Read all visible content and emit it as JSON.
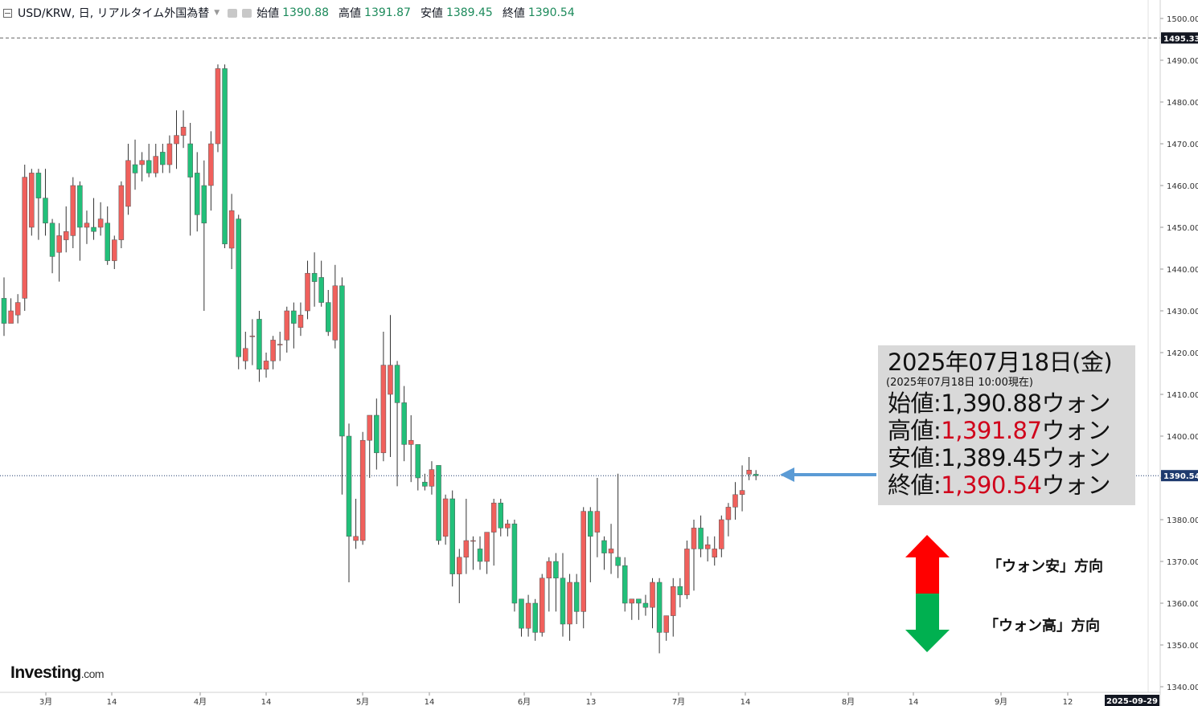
{
  "header": {
    "symbol": "USD/KRW, 日, リアルタイム外国為替",
    "open_label": "始値",
    "open_value": "1390.88",
    "high_label": "高値",
    "high_value": "1391.87",
    "low_label": "安値",
    "low_value": "1389.45",
    "close_label": "終値",
    "close_value": "1390.54"
  },
  "info_box": {
    "date": "2025年07月18日(金)",
    "as_of": "(2025年07月18日 10:00現在)",
    "rows": [
      {
        "label": "始値",
        "value": "1,390.88",
        "unit": "ウォン",
        "highlight": false
      },
      {
        "label": "高値",
        "value": "1,391.87",
        "unit": "ウォン",
        "highlight": true
      },
      {
        "label": "安値",
        "value": "1,389.45",
        "unit": "ウォン",
        "highlight": false
      },
      {
        "label": "終値",
        "value": "1,390.54",
        "unit": "ウォン",
        "highlight": true
      }
    ]
  },
  "legend": {
    "up_text": "「ウォン安」方向",
    "down_text": "「ウォン高」方向",
    "up_color": "#ff0000",
    "down_color": "#00b050"
  },
  "logo": {
    "brand": "Investing",
    "suffix": ".com"
  },
  "colors": {
    "up_candle": "#f0605c",
    "down_candle": "#22c07a",
    "wick": "#333333",
    "grid_line": "#eeeeee",
    "price_line": "#1e3a6e",
    "axis_tag_bg": "#131722",
    "arrow": "#5b9bd5"
  },
  "chart_data": {
    "type": "candlestick",
    "symbol": "USD/KRW",
    "interval": "日",
    "ylim": [
      1337,
      1505
    ],
    "yticks": [
      "1340.00",
      "1350.00",
      "1360.00",
      "1370.00",
      "1380.00",
      "1390.00",
      "1400.00",
      "1410.00",
      "1420.00",
      "1430.00",
      "1440.00",
      "1450.00",
      "1460.00",
      "1470.00",
      "1480.00",
      "1490.00",
      "1500.00"
    ],
    "xticks": [
      "3月",
      "14",
      "4月",
      "14",
      "5月",
      "14",
      "6月",
      "13",
      "7月",
      "14",
      "8月",
      "14",
      "9月",
      "12"
    ],
    "x_axis_end_label": "2025-09-29",
    "reference_line": {
      "value": 1495.33,
      "label": "1495.33"
    },
    "current_price": {
      "value": 1390.54,
      "label": "1390.54"
    },
    "candles": [
      [
        1433.0,
        1438.0,
        1424.0,
        1427.0
      ],
      [
        1427.0,
        1433.0,
        1428.0,
        1430.0
      ],
      [
        1429.0,
        1434.0,
        1427.0,
        1432.0
      ],
      [
        1433.0,
        1465.0,
        1430.0,
        1462.0
      ],
      [
        1450.0,
        1464.0,
        1448.0,
        1463.0
      ],
      [
        1463.0,
        1464.0,
        1447.0,
        1457.0
      ],
      [
        1457.0,
        1464.0,
        1448.0,
        1451.0
      ],
      [
        1451.0,
        1452.0,
        1439.0,
        1443.0
      ],
      [
        1444.0,
        1451.0,
        1437.0,
        1448.0
      ],
      [
        1447.0,
        1455.0,
        1444.0,
        1449.0
      ],
      [
        1448.0,
        1462.0,
        1445.0,
        1460.0
      ],
      [
        1460.0,
        1461.0,
        1442.0,
        1450.0
      ],
      [
        1450.0,
        1454.0,
        1446.0,
        1451.0
      ],
      [
        1450.0,
        1457.0,
        1447.0,
        1449.0
      ],
      [
        1450.0,
        1456.0,
        1448.0,
        1452.0
      ],
      [
        1451.0,
        1455.0,
        1441.0,
        1442.0
      ],
      [
        1442.0,
        1448.0,
        1440.0,
        1447.0
      ],
      [
        1447.0,
        1461.0,
        1445.0,
        1460.0
      ],
      [
        1455.0,
        1470.0,
        1453.0,
        1466.0
      ],
      [
        1465.0,
        1471.0,
        1459.0,
        1463.0
      ],
      [
        1465.0,
        1468.0,
        1461.0,
        1466.0
      ],
      [
        1466.0,
        1470.0,
        1462.0,
        1463.0
      ],
      [
        1463.0,
        1470.0,
        1462.0,
        1467.0
      ],
      [
        1468.0,
        1470.0,
        1463.0,
        1465.0
      ],
      [
        1465.0,
        1472.0,
        1463.0,
        1470.0
      ],
      [
        1470.0,
        1478.0,
        1464.0,
        1472.0
      ],
      [
        1472.0,
        1478.0,
        1469.0,
        1474.0
      ],
      [
        1470.0,
        1475.0,
        1448.0,
        1462.0
      ],
      [
        1463.0,
        1468.0,
        1449.0,
        1453.0
      ],
      [
        1460.0,
        1466.0,
        1430.0,
        1451.0
      ],
      [
        1460.0,
        1473.0,
        1454.0,
        1470.0
      ],
      [
        1470.0,
        1489.0,
        1468.0,
        1488.0
      ],
      [
        1488.0,
        1489.0,
        1445.0,
        1446.0
      ],
      [
        1445.0,
        1458.0,
        1440.0,
        1454.0
      ],
      [
        1452.0,
        1453.0,
        1416.0,
        1419.0
      ],
      [
        1418.0,
        1425.0,
        1416.0,
        1421.0
      ],
      [
        1424.0,
        1428.0,
        1417.0,
        1424.0
      ],
      [
        1428.0,
        1430.0,
        1413.0,
        1416.0
      ],
      [
        1416.0,
        1420.0,
        1414.0,
        1418.0
      ],
      [
        1418.0,
        1424.0,
        1416.0,
        1423.0
      ],
      [
        1422.0,
        1425.0,
        1418.0,
        1422.0
      ],
      [
        1423.0,
        1431.0,
        1420.0,
        1430.0
      ],
      [
        1430.0,
        1432.0,
        1421.0,
        1427.0
      ],
      [
        1426.0,
        1432.0,
        1424.0,
        1429.0
      ],
      [
        1430.0,
        1442.0,
        1428.0,
        1439.0
      ],
      [
        1439.0,
        1444.0,
        1431.0,
        1437.0
      ],
      [
        1438.0,
        1442.0,
        1431.0,
        1432.0
      ],
      [
        1432.0,
        1435.0,
        1424.0,
        1425.0
      ],
      [
        1423.0,
        1441.0,
        1421.0,
        1436.0
      ],
      [
        1436.0,
        1438.0,
        1386.0,
        1400.0
      ],
      [
        1400.0,
        1403.0,
        1365.0,
        1376.0
      ],
      [
        1375.0,
        1385.0,
        1373.0,
        1376.0
      ],
      [
        1375.0,
        1401.0,
        1374.0,
        1399.0
      ],
      [
        1399.0,
        1404.0,
        1390.0,
        1405.0
      ],
      [
        1405.0,
        1409.0,
        1392.0,
        1396.0
      ],
      [
        1396.0,
        1425.0,
        1394.0,
        1417.0
      ],
      [
        1410.0,
        1429.0,
        1395.0,
        1417.0
      ],
      [
        1417.0,
        1418.0,
        1388.0,
        1408.0
      ],
      [
        1408.0,
        1412.0,
        1394.0,
        1398.0
      ],
      [
        1398.0,
        1405.0,
        1389.0,
        1399.0
      ],
      [
        1398.0,
        1398.0,
        1387.0,
        1390.0
      ],
      [
        1389.0,
        1391.0,
        1387.0,
        1388.0
      ],
      [
        1388.0,
        1394.0,
        1386.0,
        1392.0
      ],
      [
        1393.0,
        1393.0,
        1374.0,
        1375.0
      ],
      [
        1376.0,
        1386.0,
        1374.0,
        1385.0
      ],
      [
        1385.0,
        1387.0,
        1364.0,
        1367.0
      ],
      [
        1367.0,
        1373.0,
        1360.0,
        1371.0
      ],
      [
        1371.0,
        1385.0,
        1367.0,
        1375.0
      ],
      [
        1375.0,
        1376.0,
        1368.0,
        1375.0
      ],
      [
        1373.0,
        1376.0,
        1368.0,
        1370.0
      ],
      [
        1370.0,
        1376.0,
        1367.0,
        1377.0
      ],
      [
        1377.0,
        1385.0,
        1369.0,
        1384.0
      ],
      [
        1384.0,
        1385.0,
        1376.0,
        1378.0
      ],
      [
        1378.0,
        1380.0,
        1376.0,
        1379.0
      ],
      [
        1379.0,
        1380.0,
        1358.0,
        1360.0
      ],
      [
        1361.0,
        1361.0,
        1352.0,
        1354.0
      ],
      [
        1354.0,
        1362.0,
        1352.0,
        1360.0
      ],
      [
        1360.0,
        1361.0,
        1351.0,
        1353.0
      ],
      [
        1353.0,
        1367.0,
        1352.0,
        1366.0
      ],
      [
        1366.0,
        1371.0,
        1358.0,
        1370.0
      ],
      [
        1370.0,
        1372.0,
        1358.0,
        1366.0
      ],
      [
        1366.0,
        1372.0,
        1352.0,
        1355.0
      ],
      [
        1355.0,
        1367.0,
        1351.0,
        1365.0
      ],
      [
        1365.0,
        1367.0,
        1355.0,
        1358.0
      ],
      [
        1358.0,
        1383.0,
        1354.0,
        1382.0
      ],
      [
        1382.0,
        1383.0,
        1365.0,
        1376.0
      ],
      [
        1377.0,
        1390.0,
        1371.0,
        1382.0
      ],
      [
        1375.0,
        1376.0,
        1368.0,
        1372.0
      ],
      [
        1372.0,
        1379.0,
        1367.0,
        1373.0
      ],
      [
        1371.0,
        1391.0,
        1366.0,
        1369.0
      ],
      [
        1369.0,
        1371.0,
        1358.0,
        1360.0
      ],
      [
        1360.0,
        1361.0,
        1356.0,
        1361.0
      ],
      [
        1361.0,
        1361.0,
        1356.0,
        1360.0
      ],
      [
        1360.0,
        1362.0,
        1357.0,
        1359.0
      ],
      [
        1359.0,
        1366.0,
        1354.0,
        1365.0
      ],
      [
        1365.0,
        1366.0,
        1348.0,
        1353.0
      ],
      [
        1353.0,
        1357.0,
        1351.0,
        1357.0
      ],
      [
        1357.0,
        1366.0,
        1352.0,
        1364.0
      ],
      [
        1364.0,
        1366.0,
        1359.0,
        1362.0
      ],
      [
        1362.0,
        1375.0,
        1361.0,
        1373.0
      ],
      [
        1373.0,
        1380.0,
        1363.0,
        1378.0
      ],
      [
        1378.0,
        1381.0,
        1371.0,
        1373.0
      ],
      [
        1373.0,
        1376.0,
        1370.0,
        1374.0
      ],
      [
        1371.0,
        1376.0,
        1369.0,
        1373.0
      ],
      [
        1373.0,
        1381.0,
        1371.0,
        1380.0
      ],
      [
        1380.0,
        1384.0,
        1376.0,
        1383.0
      ],
      [
        1383.0,
        1389.0,
        1380.0,
        1386.0
      ],
      [
        1386.0,
        1393.0,
        1382.0,
        1387.0
      ],
      [
        1390.88,
        1395.0,
        1389.45,
        1391.87
      ],
      [
        1390.88,
        1391.87,
        1389.45,
        1390.54
      ]
    ]
  }
}
